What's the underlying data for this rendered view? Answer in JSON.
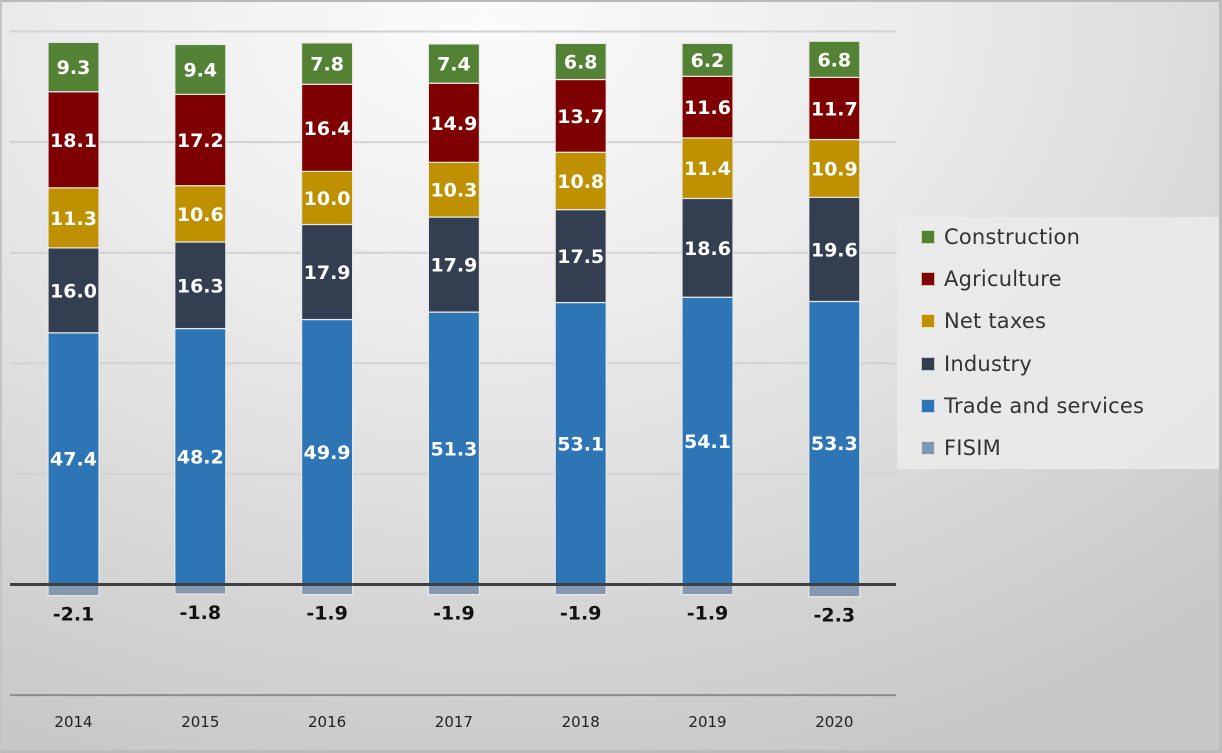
{
  "chart_data": {
    "type": "bar",
    "stacked": true,
    "title": "",
    "xlabel": "",
    "ylabel": "",
    "categories": [
      "2014",
      "2015",
      "2016",
      "2017",
      "2018",
      "2019",
      "2020"
    ],
    "series": [
      {
        "name": "FISIM",
        "color": "#8497b0",
        "values": [
          -2.1,
          -1.8,
          -1.9,
          -1.9,
          -1.9,
          -1.9,
          -2.3
        ]
      },
      {
        "name": "Trade and services",
        "color": "#2e75b6",
        "values": [
          47.4,
          48.2,
          49.9,
          51.3,
          53.1,
          54.1,
          53.3
        ]
      },
      {
        "name": "Industry",
        "color": "#333f50",
        "values": [
          16.0,
          16.3,
          17.9,
          17.9,
          17.5,
          18.6,
          19.6
        ]
      },
      {
        "name": "Net taxes",
        "color": "#bf9000",
        "values": [
          11.3,
          10.6,
          10.0,
          10.3,
          10.8,
          11.4,
          10.9
        ]
      },
      {
        "name": "Agriculture",
        "color": "#7f0000",
        "values": [
          18.1,
          17.2,
          16.4,
          14.9,
          13.7,
          11.6,
          11.7
        ]
      },
      {
        "name": "Construction",
        "color": "#548235",
        "values": [
          9.3,
          9.4,
          7.8,
          7.4,
          6.8,
          6.2,
          6.8
        ]
      }
    ],
    "legend": {
      "position": "right",
      "order": [
        "Construction",
        "Agriculture",
        "Net taxes",
        "Industry",
        "Trade and services",
        "FISIM"
      ]
    },
    "ylim": [
      -21,
      104
    ],
    "y_tick_labels_visible": false,
    "grid": true,
    "data_labels": true
  }
}
